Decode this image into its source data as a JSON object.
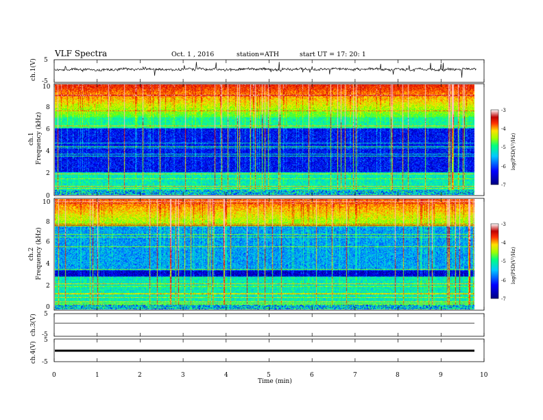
{
  "header": {
    "title": "VLF  Spectra",
    "date": "Oct. 1  , 2016",
    "station": "station=ATH",
    "start": "start  UT  =    17: 20: 1"
  },
  "chart_data": {
    "type": "heatmap",
    "xlabel": "Time  (min)",
    "xlim": [
      0,
      10
    ],
    "x_ticks": [
      "0",
      "1",
      "2",
      "3",
      "4",
      "5",
      "6",
      "7",
      "8",
      "9",
      "10"
    ],
    "panels": [
      {
        "label": "ch.1(V)",
        "kind": "waveform",
        "ylim": [
          -5,
          5
        ],
        "y_ticks": [
          "5",
          "-5"
        ],
        "trace_end_min": 9.8
      },
      {
        "label": "Frequency  (kHz)",
        "sublabel": "ch.1",
        "kind": "spectrogram",
        "ylim": [
          0,
          10
        ],
        "y_ticks": [
          "0",
          "2",
          "4",
          "6",
          "8",
          "10"
        ],
        "colorbar": {
          "label": "log(PSD(V²/Hz)",
          "range": [
            -7,
            -3
          ],
          "ticks": [
            "-3",
            "-4",
            "-5",
            "-6",
            "-7"
          ]
        }
      },
      {
        "label": "Frequency  (kHz)",
        "sublabel": "ch.2",
        "kind": "spectrogram",
        "ylim": [
          0,
          10
        ],
        "y_ticks": [
          "0",
          "2",
          "4",
          "6",
          "8",
          "10"
        ],
        "colorbar": {
          "label": "log(PSD(V²/Hz)",
          "range": [
            -7,
            -3
          ],
          "ticks": [
            "-3",
            "-4",
            "-5",
            "-6",
            "-7"
          ]
        }
      },
      {
        "label": "ch.3(V)",
        "kind": "waveform",
        "ylim": [
          -5,
          5
        ],
        "y_ticks": [
          "5",
          "-5"
        ],
        "flat_value": 0
      },
      {
        "label": "ch.4(V)",
        "kind": "waveform",
        "ylim": [
          -5,
          5
        ],
        "y_ticks": [
          "5",
          "-5"
        ],
        "flat_value": 0
      }
    ],
    "colormap": [
      "#00007f",
      "#0000ff",
      "#00aaff",
      "#00ffaa",
      "#66ff00",
      "#ffee00",
      "#ff4400",
      "#cc0000",
      "#ffbbbb"
    ]
  }
}
